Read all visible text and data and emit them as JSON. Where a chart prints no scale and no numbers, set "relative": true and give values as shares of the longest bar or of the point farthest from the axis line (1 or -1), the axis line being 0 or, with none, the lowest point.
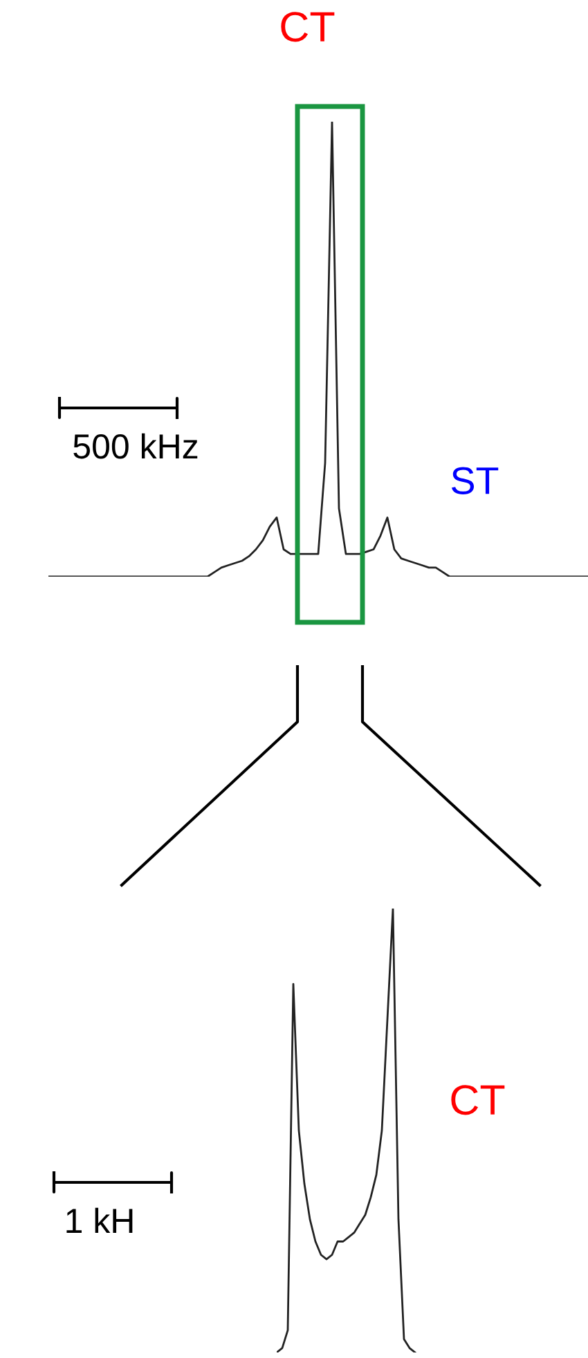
{
  "chart_data": [
    {
      "type": "line",
      "relative": true,
      "title": "CT",
      "annotations": [
        "ST",
        "500 kHz"
      ],
      "categories": [
        null,
        null,
        null,
        null,
        null,
        null,
        null,
        null,
        null,
        null,
        null,
        null,
        null,
        null,
        null,
        null,
        null,
        null,
        null,
        null,
        null,
        null,
        null,
        null,
        null,
        null,
        null,
        null,
        null,
        null,
        null,
        null,
        null,
        null,
        null,
        null,
        null,
        null,
        null,
        null,
        null,
        null,
        null,
        null,
        null,
        null,
        null,
        null,
        null,
        null,
        null,
        null,
        null,
        null,
        null,
        null,
        null,
        null,
        null,
        null,
        null,
        null,
        null,
        null,
        null,
        null,
        null,
        null,
        null,
        null,
        null,
        null,
        null,
        null,
        null,
        null,
        null,
        null,
        null
      ],
      "series": [
        {
          "color": "#222222",
          "values": [
            0,
            0,
            0,
            0,
            0,
            0,
            0,
            0,
            0,
            0,
            0,
            0,
            0,
            0,
            0,
            0,
            0,
            0,
            0,
            0,
            0,
            0,
            0,
            0,
            0.01,
            0.02,
            0.025,
            0.03,
            0.035,
            0.045,
            0.06,
            0.08,
            0.11,
            0.13,
            0.06,
            0.05,
            0.05,
            0.05,
            0.05,
            0.05,
            0.25,
            1.0,
            0.15,
            0.05,
            0.05,
            0.05,
            0.055,
            0.06,
            0.09,
            0.13,
            0.06,
            0.04,
            0.035,
            0.03,
            0.025,
            0.02,
            0.02,
            0.01,
            0,
            0,
            0,
            0,
            0,
            0,
            0,
            0,
            0,
            0,
            0,
            0,
            0,
            0,
            0,
            0,
            0,
            0,
            0,
            0,
            0
          ]
        }
      ]
    },
    {
      "type": "line",
      "relative": true,
      "annotations": [
        "1 kH",
        "CT"
      ],
      "categories": [
        null,
        null,
        null,
        null,
        null,
        null,
        null,
        null,
        null,
        null,
        null,
        null,
        null,
        null,
        null,
        null,
        null,
        null,
        null,
        null,
        null,
        null,
        null,
        null,
        null,
        null
      ],
      "series": [
        {
          "color": "#222222",
          "values": [
            0,
            0.01,
            0.05,
            0.83,
            0.5,
            0.38,
            0.3,
            0.25,
            0.22,
            0.21,
            0.22,
            0.25,
            0.25,
            0.26,
            0.27,
            0.29,
            0.31,
            0.35,
            0.4,
            0.5,
            0.75,
            1.0,
            0.3,
            0.03,
            0.01,
            0
          ]
        }
      ]
    }
  ]
}
